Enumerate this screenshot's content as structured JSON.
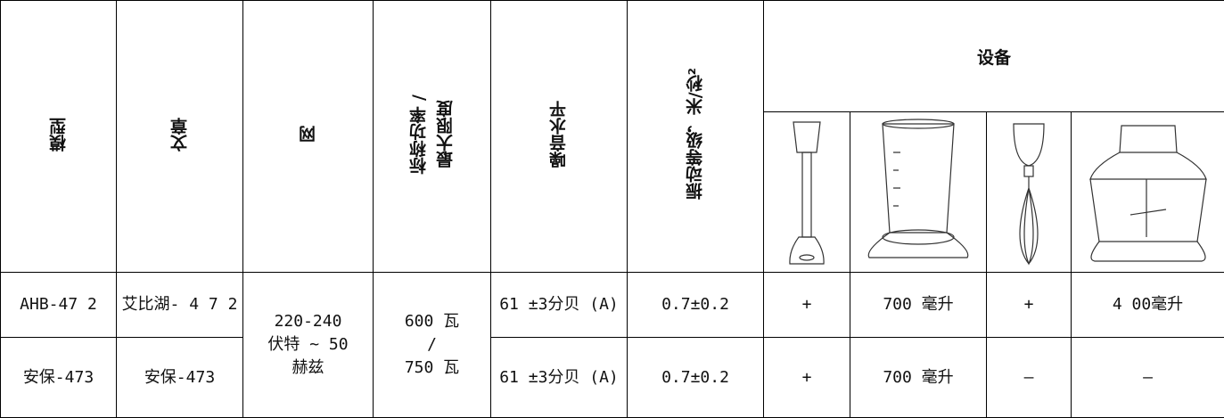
{
  "table": {
    "header": {
      "columns": [
        "模型",
        "文章",
        "网",
        [
          "标称功率 /",
          "最大限度"
        ],
        "噪音水平",
        "振动等级，米/秒²"
      ],
      "equipment": "设备"
    },
    "rows": [
      [
        "AHB-47 2",
        "艾比湖- 4 7 2",
        [
          "220-240",
          "伏特 ~ 50",
          "赫兹"
        ],
        [
          "600 瓦",
          "/",
          "750 瓦"
        ],
        "61 ±3分贝 (A)",
        "0.7±0.2",
        "+",
        "700 毫升",
        "+",
        "4 00毫升"
      ],
      [
        "安保-473",
        "安保-473",
        "61 ±3分贝 (A)",
        "0.7±0.2",
        "+",
        "700 毫升",
        "–",
        "–"
      ]
    ]
  }
}
